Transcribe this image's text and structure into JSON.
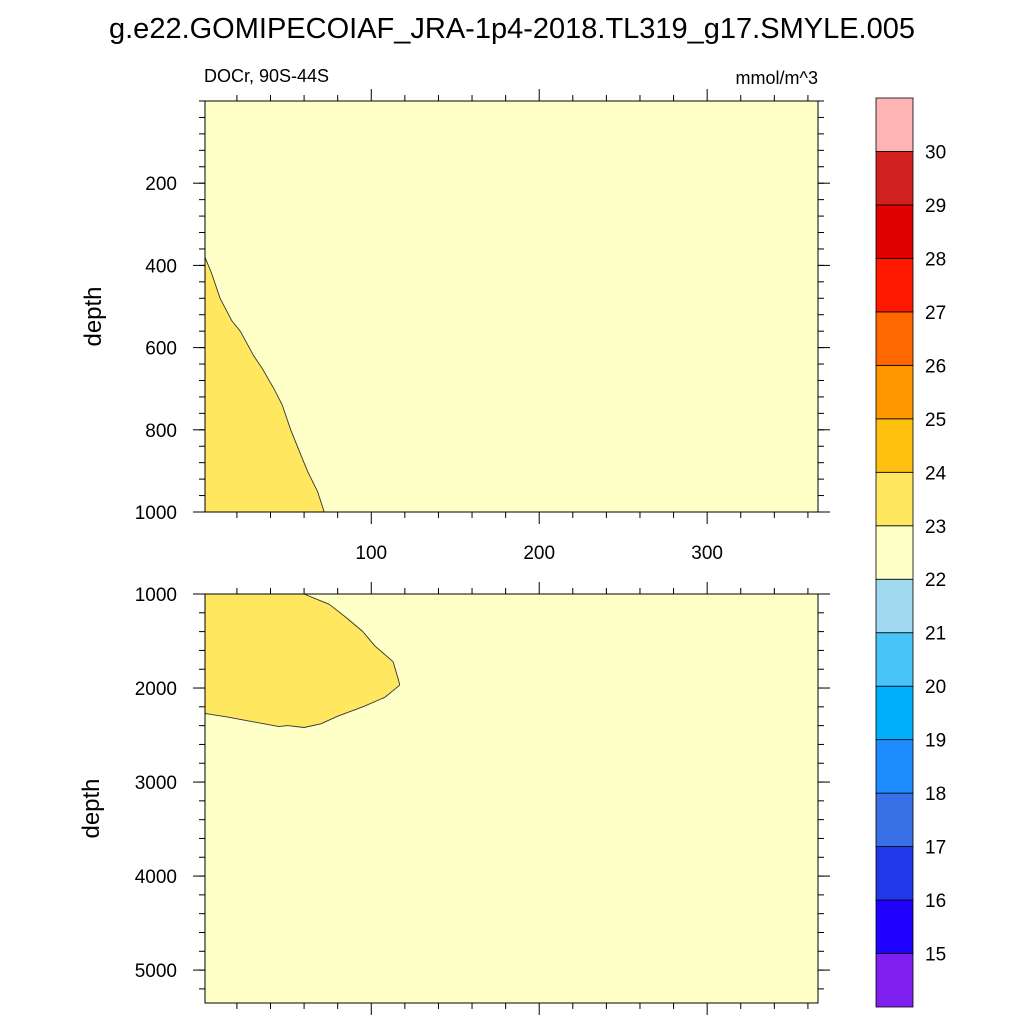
{
  "title": "g.e22.GOMIPECOIAF_JRA-1p4-2018.TL319_g17.SMYLE.005",
  "panel_left_label": "DOCr, 90S-44S",
  "panel_right_label": "mmol/m^3",
  "chart_data": [
    {
      "type": "contour",
      "panel": "upper",
      "xlabel": "",
      "ylabel": "depth",
      "xlim": [
        1,
        366
      ],
      "ylim": [
        1000,
        0
      ],
      "x_ticks": [
        "100",
        "200",
        "300"
      ],
      "y_ticks": [
        "200",
        "400",
        "600",
        "800",
        "1000"
      ],
      "background_level": "22-23",
      "regions": [
        {
          "level": "23-24",
          "boundary": [
            [
              1,
              380
            ],
            [
              5,
              420
            ],
            [
              10,
              480
            ],
            [
              17,
              535
            ],
            [
              22,
              560
            ],
            [
              30,
              620
            ],
            [
              35,
              650
            ],
            [
              42,
              700
            ],
            [
              47,
              740
            ],
            [
              52,
              800
            ],
            [
              57,
              850
            ],
            [
              62,
              900
            ],
            [
              68,
              950
            ],
            [
              72,
              1000
            ],
            [
              1,
              1000
            ]
          ]
        }
      ]
    },
    {
      "type": "contour",
      "panel": "lower",
      "xlabel": "",
      "ylabel": "depth",
      "xlim": [
        1,
        366
      ],
      "ylim": [
        5350,
        1000
      ],
      "x_ticks": [],
      "y_ticks": [
        "1000",
        "2000",
        "3000",
        "4000",
        "5000"
      ],
      "background_level": "22-23",
      "regions": [
        {
          "level": "23-24",
          "boundary": [
            [
              1,
              1000
            ],
            [
              60,
              1000
            ],
            [
              68,
              1060
            ],
            [
              75,
              1110
            ],
            [
              85,
              1250
            ],
            [
              95,
              1400
            ],
            [
              102,
              1550
            ],
            [
              113,
              1720
            ],
            [
              116,
              1900
            ],
            [
              117,
              1970
            ],
            [
              108,
              2100
            ],
            [
              95,
              2200
            ],
            [
              80,
              2300
            ],
            [
              70,
              2380
            ],
            [
              60,
              2420
            ],
            [
              50,
              2400
            ],
            [
              45,
              2410
            ],
            [
              30,
              2360
            ],
            [
              15,
              2310
            ],
            [
              1,
              2270
            ]
          ]
        }
      ]
    }
  ],
  "colorbar": {
    "levels": [
      "15",
      "16",
      "17",
      "18",
      "19",
      "20",
      "21",
      "22",
      "23",
      "24",
      "25",
      "26",
      "27",
      "28",
      "29",
      "30"
    ],
    "colors": [
      "#8020f0",
      "#2000ff",
      "#2038e8",
      "#3870e8",
      "#1e8cff",
      "#00b0ff",
      "#48c4f8",
      "#a0d8f0",
      "#ffffc8",
      "#ffe860",
      "#ffc010",
      "#ff9800",
      "#ff6800",
      "#ff1800",
      "#e00000",
      "#d02020",
      "#ffb4b4"
    ]
  }
}
